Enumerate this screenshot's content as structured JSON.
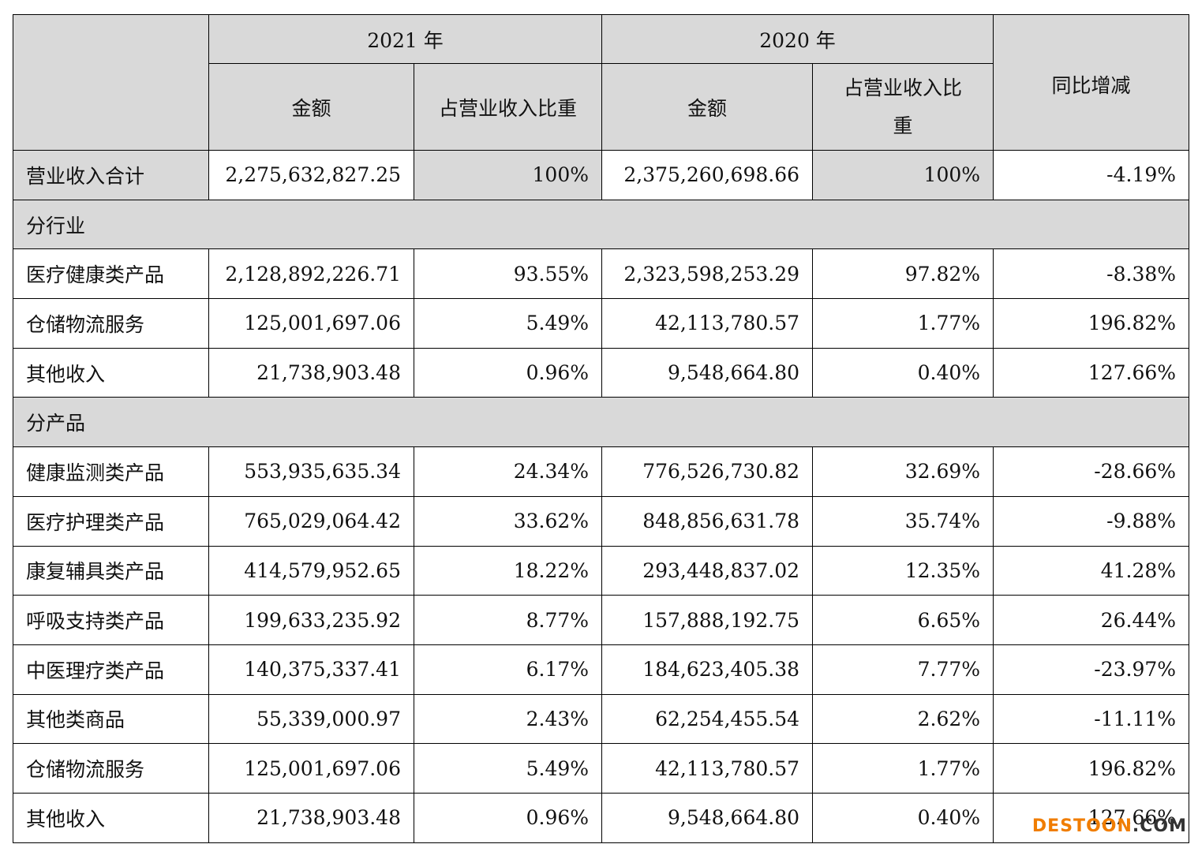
{
  "table": {
    "header": {
      "year_2021": "2021 年",
      "year_2020": "2020 年",
      "yoy": "同比增减",
      "cols": [
        "金额",
        "占营业收入比重",
        "金额",
        "占营业收入比重"
      ]
    },
    "rows": [
      [
        "营业收入合计",
        "2,275,632,827.25",
        "100%",
        "2,375,260,698.66",
        "100%",
        "-4.19%"
      ],
      [
        "分行业"
      ],
      [
        "医疗健康类产品",
        "2,128,892,226.71",
        "93.55%",
        "2,323,598,253.29",
        "97.82%",
        "-8.38%"
      ],
      [
        "仓储物流服务",
        "125,001,697.06",
        "5.49%",
        "42,113,780.57",
        "1.77%",
        "196.82%"
      ],
      [
        "其他收入",
        "21,738,903.48",
        "0.96%",
        "9,548,664.80",
        "0.40%",
        "127.66%"
      ],
      [
        "分产品"
      ],
      [
        "健康监测类产品",
        "553,935,635.34",
        "24.34%",
        "776,526,730.82",
        "32.69%",
        "-28.66%"
      ],
      [
        "医疗护理类产品",
        "765,029,064.42",
        "33.62%",
        "848,856,631.78",
        "35.74%",
        "-9.88%"
      ],
      [
        "康复辅具类产品",
        "414,579,952.65",
        "18.22%",
        "293,448,837.02",
        "12.35%",
        "41.28%"
      ],
      [
        "呼吸支持类产品",
        "199,633,235.92",
        "8.77%",
        "157,888,192.75",
        "6.65%",
        "26.44%"
      ],
      [
        "中医理疗类产品",
        "140,375,337.41",
        "6.17%",
        "184,623,405.38",
        "7.77%",
        "-23.97%"
      ],
      [
        "其他类商品",
        "55,339,000.97",
        "2.43%",
        "62,254,455.54",
        "2.62%",
        "-11.11%"
      ],
      [
        "仓储物流服务",
        "125,001,697.06",
        "5.49%",
        "42,113,780.57",
        "1.77%",
        "196.82%"
      ],
      [
        "其他收入",
        "21,738,903.48",
        "0.96%",
        "9,548,664.80",
        "0.40%",
        "127.66%"
      ]
    ]
  },
  "watermark": {
    "brand": "DESTOON",
    "suffix": ".COM"
  }
}
